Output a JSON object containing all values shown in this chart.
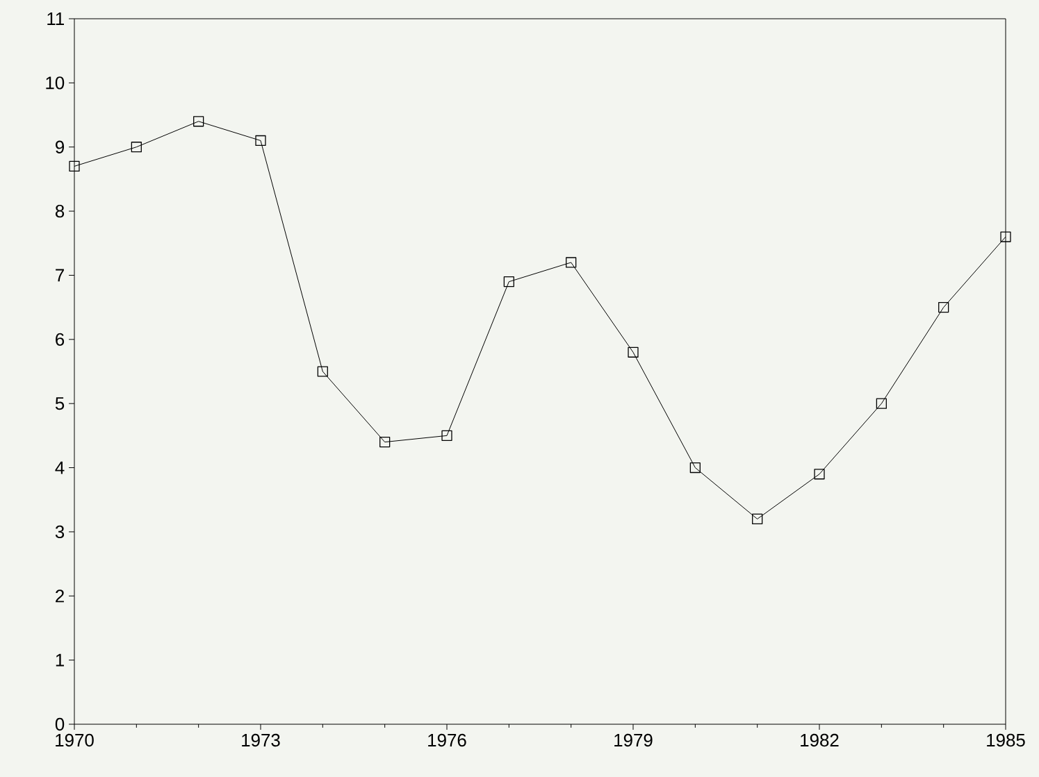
{
  "chart_data": {
    "type": "line",
    "x": [
      1970,
      1971,
      1972,
      1973,
      1974,
      1975,
      1976,
      1977,
      1978,
      1979,
      1980,
      1981,
      1982,
      1983,
      1984,
      1985
    ],
    "series": [
      {
        "color": "#000000",
        "values": [
          8.7,
          9.0,
          9.4,
          9.1,
          5.5,
          4.4,
          4.5,
          6.9,
          7.2,
          5.8,
          4.0,
          3.2,
          3.9,
          5.0,
          6.5,
          7.6
        ]
      }
    ],
    "xlim": [
      1970,
      1985
    ],
    "xticks": [
      1970,
      1973,
      1976,
      1979,
      1982,
      1985
    ],
    "ylim": [
      0,
      11
    ],
    "yticks": [
      0,
      1,
      2,
      3,
      4,
      5,
      6,
      7,
      8,
      9,
      10,
      11
    ],
    "marker": "square",
    "line_style": "solid"
  }
}
